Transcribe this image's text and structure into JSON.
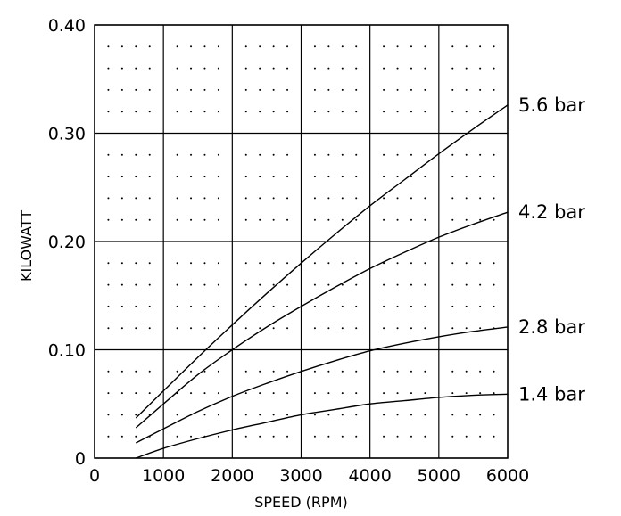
{
  "chart_data": {
    "type": "line",
    "title": "",
    "xlabel": "SPEED (RPM)",
    "ylabel": "KILOWATT",
    "xlim": [
      0,
      6000
    ],
    "ylim": [
      0,
      0.4
    ],
    "x_ticks": [
      0,
      1000,
      2000,
      3000,
      4000,
      5000,
      6000
    ],
    "x_tick_labels": [
      "0",
      "1000",
      "2000",
      "3000",
      "4000",
      "5000",
      "6000"
    ],
    "y_ticks": [
      0,
      0.1,
      0.2,
      0.3,
      0.4
    ],
    "y_tick_labels": [
      "0",
      "0.10",
      "0.20",
      "0.30",
      "0.40"
    ],
    "grid": true,
    "minor_grid": "dotted",
    "legend": "inline labels at right end of each curve",
    "line_color": "#000000",
    "series": [
      {
        "name": "5.6 bar",
        "x": [
          600,
          1000,
          1500,
          2000,
          2500,
          3000,
          3500,
          4000,
          4500,
          5000,
          5500,
          6000
        ],
        "values": [
          0.037,
          0.062,
          0.093,
          0.123,
          0.152,
          0.18,
          0.207,
          0.233,
          0.257,
          0.281,
          0.304,
          0.326
        ]
      },
      {
        "name": "4.2 bar",
        "x": [
          600,
          1000,
          1500,
          2000,
          2500,
          3000,
          3500,
          4000,
          4500,
          5000,
          5500,
          6000
        ],
        "values": [
          0.028,
          0.05,
          0.077,
          0.1,
          0.121,
          0.14,
          0.158,
          0.175,
          0.19,
          0.204,
          0.216,
          0.227
        ]
      },
      {
        "name": "2.8 bar",
        "x": [
          600,
          1000,
          1500,
          2000,
          2500,
          3000,
          3500,
          4000,
          4500,
          5000,
          5500,
          6000
        ],
        "values": [
          0.014,
          0.027,
          0.043,
          0.057,
          0.069,
          0.08,
          0.09,
          0.099,
          0.106,
          0.112,
          0.117,
          0.121
        ]
      },
      {
        "name": "1.4 bar",
        "x": [
          600,
          1000,
          1500,
          2000,
          2500,
          3000,
          3500,
          4000,
          4500,
          5000,
          5500,
          6000
        ],
        "values": [
          0.0,
          0.009,
          0.018,
          0.026,
          0.033,
          0.04,
          0.045,
          0.05,
          0.053,
          0.056,
          0.058,
          0.059
        ]
      }
    ]
  }
}
